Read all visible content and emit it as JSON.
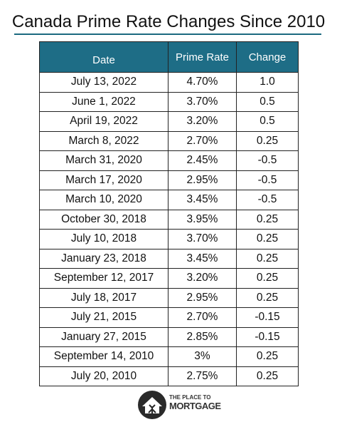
{
  "header": {
    "title": "Canada Prime Rate Changes Since 2010"
  },
  "table": {
    "columns": [
      "Date",
      "Prime Rate",
      "Change"
    ],
    "rows": [
      [
        "July 13, 2022",
        "4.70%",
        "1.0"
      ],
      [
        "June 1, 2022",
        "3.70%",
        "0.5"
      ],
      [
        "April 19, 2022",
        "3.20%",
        "0.5"
      ],
      [
        "March 8, 2022",
        "2.70%",
        "0.25"
      ],
      [
        "March 31, 2020",
        "2.45%",
        "-0.5"
      ],
      [
        "March 17, 2020",
        "2.95%",
        "-0.5"
      ],
      [
        "March 10, 2020",
        "3.45%",
        "-0.5"
      ],
      [
        "October 30, 2018",
        "3.95%",
        "0.25"
      ],
      [
        "July 10, 2018",
        "3.70%",
        "0.25"
      ],
      [
        "January 23, 2018",
        "3.45%",
        "0.25"
      ],
      [
        "September 12, 2017",
        "3.20%",
        "0.25"
      ],
      [
        "July 18, 2017",
        "2.95%",
        "0.25"
      ],
      [
        "July 21, 2015",
        "2.70%",
        "-0.15"
      ],
      [
        "January 27, 2015",
        "2.85%",
        "-0.15"
      ],
      [
        "September 14, 2010",
        "3%",
        "0.25"
      ],
      [
        "July 20, 2010",
        "2.75%",
        "0.25"
      ]
    ]
  },
  "logo": {
    "line1": "THE PLACE TO",
    "line2": "MORTGAGE"
  }
}
